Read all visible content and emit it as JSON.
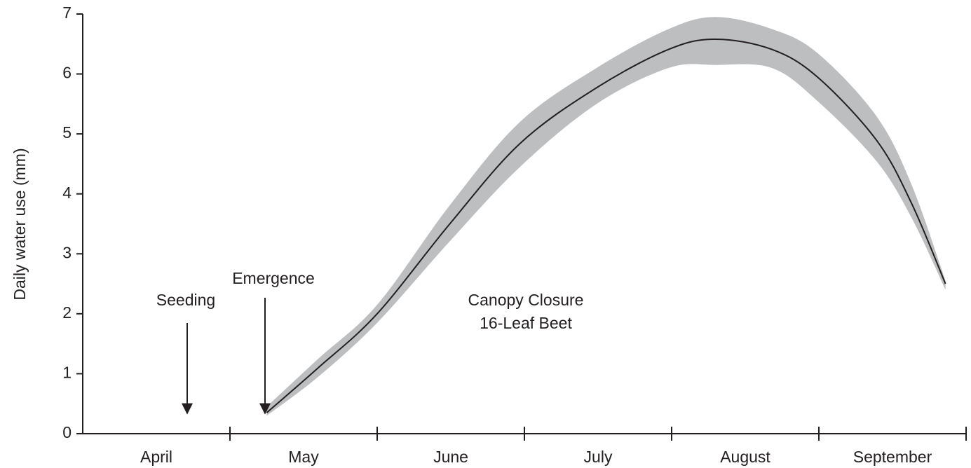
{
  "chart_data": {
    "type": "line",
    "y_label": "Daily water use  (mm)",
    "categories": [
      "April",
      "May",
      "June",
      "July",
      "August",
      "September"
    ],
    "xlim": [
      0,
      6
    ],
    "ylim": [
      0,
      7
    ],
    "yticks": [
      0,
      1,
      2,
      3,
      4,
      5,
      6,
      7
    ],
    "x": [
      1.25,
      1.6,
      2.0,
      2.49,
      2.97,
      3.49,
      3.98,
      4.3,
      4.68,
      4.99,
      5.39,
      5.63,
      5.86
    ],
    "series": [
      {
        "color": "#231f20",
        "values": [
          0.35,
          1.1,
          2.0,
          3.49,
          4.84,
          5.77,
          6.41,
          6.58,
          6.41,
          5.95,
          4.9,
          3.84,
          2.5
        ]
      }
    ],
    "band": {
      "color": "#bcbec0",
      "lower": [
        0.3,
        0.95,
        1.85,
        3.2,
        4.45,
        5.5,
        6.1,
        6.15,
        6.1,
        5.55,
        4.55,
        3.6,
        2.4
      ],
      "upper": [
        0.45,
        1.25,
        2.15,
        3.8,
        5.2,
        6.1,
        6.75,
        6.95,
        6.75,
        6.35,
        5.3,
        4.15,
        2.55
      ]
    },
    "annotations": [
      {
        "lines": [
          "Seeding"
        ]
      },
      {
        "lines": [
          "Emergence"
        ]
      },
      {
        "lines": [
          "Canopy Closure",
          "16-Leaf Beet"
        ]
      }
    ]
  }
}
